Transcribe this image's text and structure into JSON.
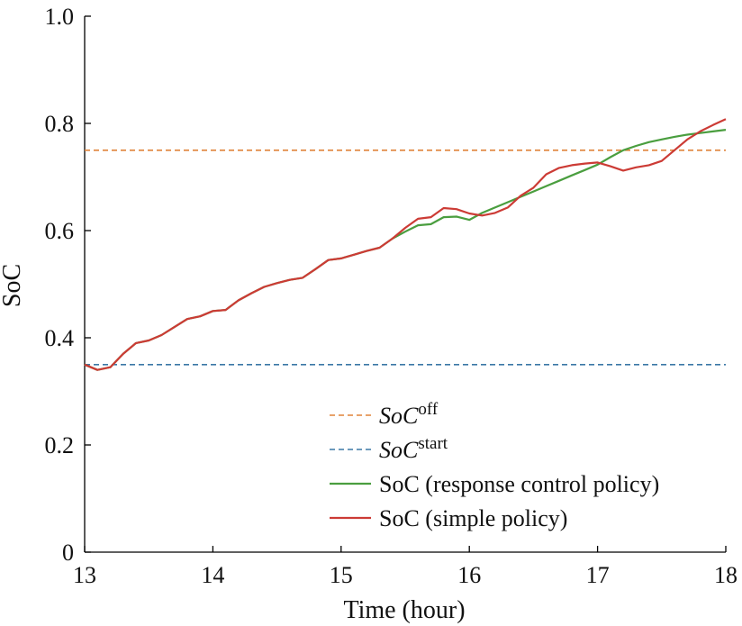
{
  "chart_data": {
    "type": "line",
    "xlabel": "Time (hour)",
    "ylabel": "SoC",
    "xlim": [
      13,
      18
    ],
    "ylim": [
      0,
      1.0
    ],
    "x_ticks": [
      "13",
      "14",
      "15",
      "16",
      "17",
      "18"
    ],
    "y_ticks": [
      "0",
      "0.2",
      "0.4",
      "0.6",
      "0.8",
      "1.0"
    ],
    "grid": false,
    "legend_position": "bottom-right",
    "series": [
      {
        "name": "SoC (response control policy)",
        "legend_base": "SoC (response control policy)",
        "legend_sup": "",
        "legend_italic": false,
        "style": "solid",
        "color": "#4a9e3f",
        "x": [
          13.0,
          13.1,
          13.2,
          13.3,
          13.4,
          13.5,
          13.6,
          13.7,
          13.8,
          13.9,
          14.0,
          14.1,
          14.2,
          14.3,
          14.4,
          14.5,
          14.6,
          14.7,
          14.8,
          14.9,
          15.0,
          15.1,
          15.2,
          15.3,
          15.4,
          15.5,
          15.6,
          15.7,
          15.8,
          15.9,
          16.0,
          16.1,
          16.2,
          16.3,
          16.4,
          16.5,
          16.6,
          16.7,
          16.8,
          16.9,
          17.0,
          17.1,
          17.2,
          17.3,
          17.4,
          17.5,
          17.6,
          17.7,
          17.8,
          17.9,
          18.0
        ],
        "y": [
          0.35,
          0.34,
          0.345,
          0.37,
          0.39,
          0.395,
          0.405,
          0.42,
          0.435,
          0.44,
          0.45,
          0.452,
          0.47,
          0.483,
          0.495,
          0.502,
          0.508,
          0.512,
          0.528,
          0.545,
          0.548,
          0.555,
          0.562,
          0.568,
          0.585,
          0.598,
          0.61,
          0.612,
          0.625,
          0.626,
          0.62,
          0.633,
          0.643,
          0.653,
          0.663,
          0.673,
          0.683,
          0.693,
          0.703,
          0.713,
          0.723,
          0.737,
          0.75,
          0.758,
          0.765,
          0.77,
          0.775,
          0.779,
          0.782,
          0.785,
          0.788
        ]
      },
      {
        "name": "SoC (simple policy)",
        "legend_base": "SoC (simple policy)",
        "legend_sup": "",
        "legend_italic": false,
        "style": "solid",
        "color": "#cc3b35",
        "x": [
          13.0,
          13.1,
          13.2,
          13.3,
          13.4,
          13.5,
          13.6,
          13.7,
          13.8,
          13.9,
          14.0,
          14.1,
          14.2,
          14.3,
          14.4,
          14.5,
          14.6,
          14.7,
          14.8,
          14.9,
          15.0,
          15.1,
          15.2,
          15.3,
          15.4,
          15.5,
          15.6,
          15.7,
          15.8,
          15.9,
          16.0,
          16.1,
          16.2,
          16.3,
          16.4,
          16.5,
          16.6,
          16.7,
          16.8,
          16.9,
          17.0,
          17.1,
          17.2,
          17.3,
          17.4,
          17.5,
          17.6,
          17.7,
          17.8,
          17.9,
          18.0
        ],
        "y": [
          0.35,
          0.34,
          0.345,
          0.37,
          0.39,
          0.395,
          0.405,
          0.42,
          0.435,
          0.44,
          0.45,
          0.452,
          0.47,
          0.483,
          0.495,
          0.502,
          0.508,
          0.512,
          0.528,
          0.545,
          0.548,
          0.555,
          0.562,
          0.568,
          0.585,
          0.605,
          0.622,
          0.625,
          0.642,
          0.64,
          0.632,
          0.628,
          0.633,
          0.643,
          0.665,
          0.68,
          0.705,
          0.717,
          0.722,
          0.725,
          0.727,
          0.72,
          0.712,
          0.718,
          0.722,
          0.73,
          0.75,
          0.77,
          0.785,
          0.797,
          0.808
        ]
      },
      {
        "name": "SoC^off",
        "legend_base": "SoC",
        "legend_sup": "off",
        "legend_italic": true,
        "style": "dashed",
        "color": "#e0843a",
        "x": [
          13,
          18
        ],
        "y": [
          0.75,
          0.75
        ]
      },
      {
        "name": "SoC^start",
        "legend_base": "SoC",
        "legend_sup": "start",
        "legend_italic": true,
        "style": "dashed",
        "color": "#3b78a6",
        "x": [
          13,
          18
        ],
        "y": [
          0.35,
          0.35
        ]
      }
    ],
    "legend_order": [
      2,
      3,
      0,
      1
    ]
  }
}
